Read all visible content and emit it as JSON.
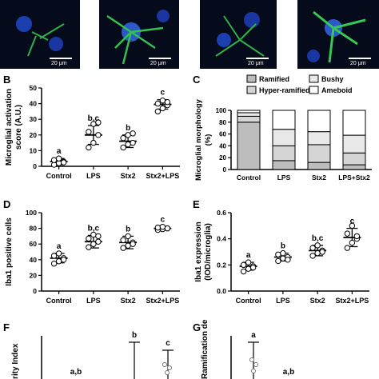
{
  "figure": {
    "scale_label": "20 μm",
    "panel_labels": [
      "B",
      "C",
      "D",
      "E",
      "F",
      "G"
    ]
  },
  "chart_data": [
    {
      "panel": "B",
      "type": "scatter",
      "ylabel": "Microglial activation score (A.U.)",
      "ylim": [
        0,
        50
      ],
      "yticks": [
        0,
        10,
        20,
        30,
        40,
        50
      ],
      "categories": [
        "Control",
        "LPS",
        "Stx2",
        "Stx2+LPS"
      ],
      "means": [
        3,
        20,
        16,
        39.5
      ],
      "sd": [
        2,
        6,
        4,
        3
      ],
      "points": [
        [
          1,
          2,
          3,
          4,
          5,
          2.5
        ],
        [
          12,
          15,
          20,
          22,
          27,
          28
        ],
        [
          12,
          14,
          15,
          18,
          20,
          21
        ],
        [
          35,
          37,
          39,
          40,
          42,
          41
        ]
      ],
      "letters": [
        "a",
        "b,c",
        "b",
        "c"
      ]
    },
    {
      "panel": "C",
      "type": "bar",
      "ylabel": "Microglial morphology (%)",
      "ylim": [
        0,
        100
      ],
      "yticks": [
        0,
        20,
        40,
        60,
        80,
        100
      ],
      "categories": [
        "Control",
        "LPS",
        "Stx2",
        "LPS+Stx2"
      ],
      "legend": [
        "Ramified",
        "Bushy",
        "Hyper-ramified",
        "Ameboid"
      ],
      "series": [
        {
          "name": "Ramified",
          "values": [
            80,
            15,
            12,
            8
          ]
        },
        {
          "name": "Hyper-ramified",
          "values": [
            10,
            25,
            30,
            20
          ]
        },
        {
          "name": "Bushy",
          "values": [
            6,
            28,
            22,
            30
          ]
        },
        {
          "name": "Ameboid",
          "values": [
            4,
            32,
            36,
            42
          ]
        }
      ]
    },
    {
      "panel": "D",
      "type": "scatter",
      "ylabel": "Iba1 positive cells",
      "ylim": [
        0,
        100
      ],
      "yticks": [
        0,
        20,
        40,
        60,
        80,
        100
      ],
      "categories": [
        "Control",
        "LPS",
        "Stx2",
        "Stx2+LPS"
      ],
      "means": [
        42,
        63,
        62,
        80
      ],
      "sd": [
        6,
        8,
        8,
        2
      ],
      "points": [
        [
          35,
          38,
          42,
          45,
          48,
          40
        ],
        [
          56,
          60,
          63,
          67,
          72,
          70
        ],
        [
          55,
          58,
          62,
          65,
          70,
          60
        ],
        [
          78,
          79,
          80,
          81,
          82,
          80
        ]
      ],
      "letters": [
        "a",
        "b,c",
        "b",
        "c"
      ]
    },
    {
      "panel": "E",
      "type": "scatter",
      "ylabel": "Iba1 expression (IOD/microglia)",
      "ylim": [
        0,
        0.6
      ],
      "yticks": [
        0.0,
        0.2,
        0.4,
        0.6
      ],
      "categories": [
        "Control",
        "LPS",
        "Stx2",
        "Stx2+LPS"
      ],
      "means": [
        0.19,
        0.26,
        0.31,
        0.41
      ],
      "sd": [
        0.03,
        0.03,
        0.04,
        0.07
      ],
      "points": [
        [
          0.15,
          0.17,
          0.19,
          0.2,
          0.22,
          0.18
        ],
        [
          0.23,
          0.25,
          0.26,
          0.28,
          0.29,
          0.24
        ],
        [
          0.27,
          0.29,
          0.31,
          0.33,
          0.35,
          0.3
        ],
        [
          0.33,
          0.37,
          0.4,
          0.44,
          0.5,
          0.42
        ]
      ],
      "letters": [
        "a",
        "b",
        "b,c",
        "c"
      ]
    },
    {
      "panel": "F",
      "type": "scatter",
      "ylabel": "rity Index",
      "letters": [
        "a,b",
        "b",
        "c"
      ]
    },
    {
      "panel": "G",
      "type": "scatter",
      "ylabel": "Ramification dex",
      "letters": [
        "a",
        "a,b"
      ]
    }
  ]
}
